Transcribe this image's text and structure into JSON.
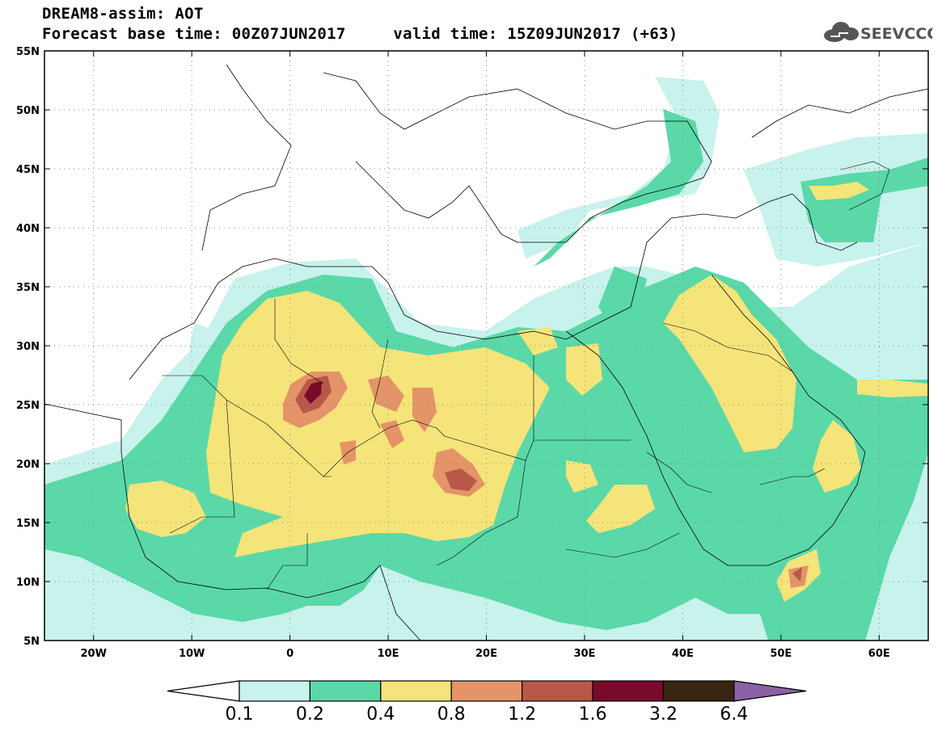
{
  "title": {
    "line1": "DREAM8-assim: AOT",
    "line2": "Forecast base time: 00Z07JUN2017     valid time: 15Z09JUN2017 (+63)"
  },
  "logo": {
    "text": "SEEVCCC",
    "icon": "cloud-icon"
  },
  "map": {
    "lon_range": [
      -25,
      65
    ],
    "lat_range": [
      5,
      55
    ],
    "lon_ticks": [
      {
        "v": -20,
        "label": "20W"
      },
      {
        "v": -10,
        "label": "10W"
      },
      {
        "v": 0,
        "label": "0"
      },
      {
        "v": 10,
        "label": "10E"
      },
      {
        "v": 20,
        "label": "20E"
      },
      {
        "v": 30,
        "label": "30E"
      },
      {
        "v": 40,
        "label": "40E"
      },
      {
        "v": 50,
        "label": "50E"
      },
      {
        "v": 60,
        "label": "60E"
      }
    ],
    "lat_ticks": [
      {
        "v": 55,
        "label": "55N"
      },
      {
        "v": 50,
        "label": "50N"
      },
      {
        "v": 45,
        "label": "45N"
      },
      {
        "v": 40,
        "label": "40N"
      },
      {
        "v": 35,
        "label": "35N"
      },
      {
        "v": 30,
        "label": "30N"
      },
      {
        "v": 25,
        "label": "25N"
      },
      {
        "v": 20,
        "label": "20N"
      },
      {
        "v": 15,
        "label": "15N"
      },
      {
        "v": 10,
        "label": "10N"
      },
      {
        "v": 5,
        "label": "5N"
      }
    ],
    "grid": "dotted"
  },
  "colorbar": {
    "labels": [
      "0.1",
      "0.2",
      "0.4",
      "0.8",
      "1.2",
      "1.6",
      "3.2",
      "6.4"
    ],
    "colors": [
      "#c8f2ec",
      "#5ad8a8",
      "#f5e47a",
      "#e49468",
      "#b85848",
      "#7a0a2a",
      "#3a2412",
      "#8c62a6"
    ],
    "low_color": "#ffffff"
  }
}
